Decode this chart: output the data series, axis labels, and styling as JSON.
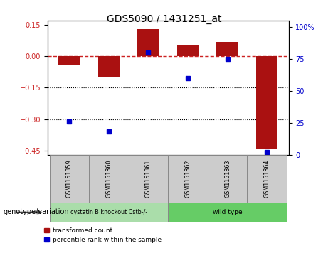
{
  "title": "GDS5090 / 1431251_at",
  "samples": [
    "GSM1151359",
    "GSM1151360",
    "GSM1151361",
    "GSM1151362",
    "GSM1151363",
    "GSM1151364"
  ],
  "bar_values": [
    -0.04,
    -0.1,
    0.13,
    0.05,
    0.07,
    -0.44
  ],
  "percentile_values": [
    26,
    18,
    80,
    60,
    75,
    2
  ],
  "ylim_left": [
    -0.47,
    0.17
  ],
  "ylim_right": [
    0,
    105
  ],
  "yticks_left": [
    0.15,
    0.0,
    -0.15,
    -0.3,
    -0.45
  ],
  "yticks_right": [
    100,
    75,
    50,
    25,
    0
  ],
  "hlines_dotted": [
    -0.15,
    -0.3
  ],
  "hline_dashed": 0.0,
  "bar_color": "#aa1111",
  "dot_color": "#0000cc",
  "background_color": "#ffffff",
  "group1_label": "cystatin B knockout Cstb-/-",
  "group2_label": "wild type",
  "group1_color": "#aaddaa",
  "group2_color": "#66cc66",
  "group1_indices": [
    0,
    1,
    2
  ],
  "group2_indices": [
    3,
    4,
    5
  ],
  "genotype_label": "genotype/variation",
  "legend_items": [
    "transformed count",
    "percentile rank within the sample"
  ],
  "bar_width": 0.55,
  "tick_label_size": 7,
  "title_size": 10
}
